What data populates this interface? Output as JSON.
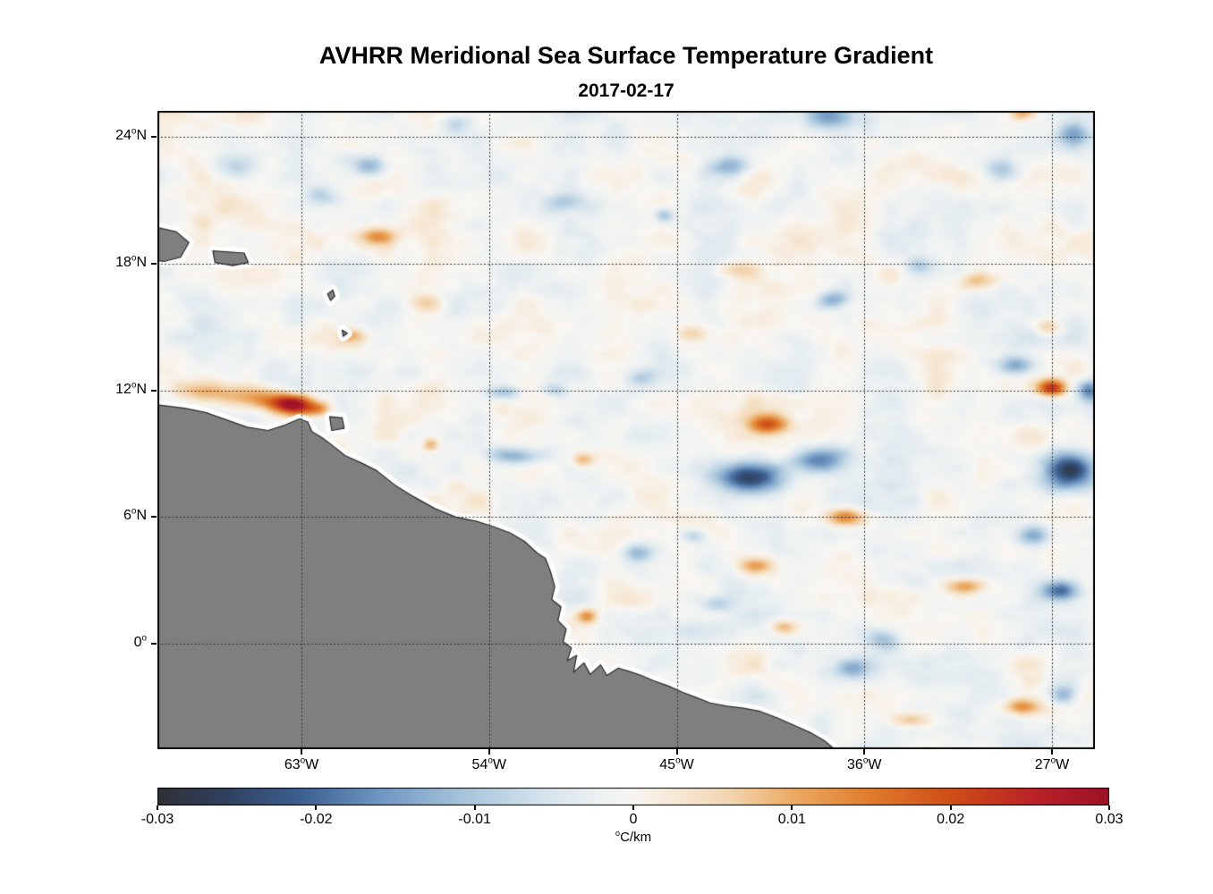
{
  "figure": {
    "title": "AVHRR Meridional Sea Surface Temperature Gradient",
    "subtitle": "2017-02-17",
    "background_color": "#ffffff"
  },
  "chart_data": {
    "type": "heatmap",
    "title": "AVHRR Meridional Sea Surface Temperature Gradient",
    "date": "2017-02-17",
    "units": "°C/km",
    "lon_range": [
      -69.91,
      -24.94
    ],
    "lat_range": [
      -4.99,
      25.23
    ],
    "x_ticks": {
      "values": [
        -63,
        -54,
        -45,
        -36,
        -27
      ],
      "labels": [
        "63°W",
        "54°W",
        "45°W",
        "36°W",
        "27°W"
      ]
    },
    "y_ticks": {
      "values": [
        24,
        18,
        12,
        6,
        0
      ],
      "labels": [
        "24°N",
        "18°N",
        "12°N",
        "6°N",
        "0°"
      ]
    },
    "grid": {
      "show": true,
      "style": "dotted",
      "color": "#2f2f2f"
    },
    "colorbar": {
      "orientation": "horizontal",
      "min": -0.03,
      "max": 0.03,
      "tick_values": [
        -0.03,
        -0.02,
        -0.01,
        0,
        0.01,
        0.02,
        0.03
      ],
      "tick_labels": [
        "-0.03",
        "-0.02",
        "-0.01",
        "0",
        "0.01",
        "0.02",
        "0.03"
      ],
      "label": "°C/km",
      "colormap": [
        {
          "v": -0.03,
          "c": "#313136"
        },
        {
          "v": -0.026,
          "c": "#2f3f5c"
        },
        {
          "v": -0.021,
          "c": "#3d6090"
        },
        {
          "v": -0.016,
          "c": "#6f96c2"
        },
        {
          "v": -0.011,
          "c": "#a4c2da"
        },
        {
          "v": -0.006,
          "c": "#d3e2ec"
        },
        {
          "v": -0.002,
          "c": "#eef2f2"
        },
        {
          "v": 0.0,
          "c": "#f8f6f2"
        },
        {
          "v": 0.002,
          "c": "#f7ecdd"
        },
        {
          "v": 0.006,
          "c": "#f3d6b2"
        },
        {
          "v": 0.01,
          "c": "#ecac64"
        },
        {
          "v": 0.015,
          "c": "#e07c2c"
        },
        {
          "v": 0.02,
          "c": "#cf4e17"
        },
        {
          "v": 0.025,
          "c": "#bc2428"
        },
        {
          "v": 0.03,
          "c": "#9d1126"
        }
      ]
    },
    "field": {
      "bias": -0.0008,
      "noise": {
        "seed": 20170217,
        "amplitude": 0.006,
        "scales_deg": [
          2.2,
          1.1,
          0.55
        ],
        "weights": [
          0.55,
          0.3,
          0.15
        ],
        "lat_aspect": 0.7
      },
      "features": [
        {
          "lon": -63.4,
          "lat": 11.3,
          "v": 0.032,
          "rx": 0.9,
          "ry": 0.45
        },
        {
          "lon": -65.0,
          "lat": 11.6,
          "v": 0.015,
          "rx": 1.5,
          "ry": 0.5
        },
        {
          "lon": -67.6,
          "lat": 11.9,
          "v": 0.012,
          "rx": 1.4,
          "ry": 0.55
        },
        {
          "lon": -62.2,
          "lat": 11.1,
          "v": 0.014,
          "rx": 0.6,
          "ry": 0.35
        },
        {
          "lon": -59.4,
          "lat": 19.3,
          "v": 0.013,
          "rx": 0.9,
          "ry": 0.4
        },
        {
          "lon": -59.7,
          "lat": 22.6,
          "v": -0.013,
          "rx": 0.9,
          "ry": 0.5
        },
        {
          "lon": -62.1,
          "lat": 21.2,
          "v": -0.009,
          "rx": 0.8,
          "ry": 0.5
        },
        {
          "lon": -66.2,
          "lat": 22.6,
          "v": -0.008,
          "rx": 1.0,
          "ry": 0.6
        },
        {
          "lon": -55.6,
          "lat": 24.6,
          "v": -0.009,
          "rx": 0.9,
          "ry": 0.5
        },
        {
          "lon": -42.4,
          "lat": 22.6,
          "v": -0.012,
          "rx": 1.0,
          "ry": 0.5
        },
        {
          "lon": -37.7,
          "lat": 24.9,
          "v": -0.013,
          "rx": 1.2,
          "ry": 0.6
        },
        {
          "lon": -29.4,
          "lat": 22.4,
          "v": -0.012,
          "rx": 0.9,
          "ry": 0.6
        },
        {
          "lon": -26.0,
          "lat": 24.1,
          "v": -0.01,
          "rx": 0.8,
          "ry": 0.5
        },
        {
          "lon": -28.4,
          "lat": 25.1,
          "v": 0.01,
          "rx": 0.6,
          "ry": 0.3
        },
        {
          "lon": -45.6,
          "lat": 20.3,
          "v": -0.011,
          "rx": 0.45,
          "ry": 0.35
        },
        {
          "lon": -50.3,
          "lat": 20.9,
          "v": -0.008,
          "rx": 0.9,
          "ry": 0.45
        },
        {
          "lon": -42.2,
          "lat": 17.7,
          "v": 0.009,
          "rx": 0.9,
          "ry": 0.4
        },
        {
          "lon": -37.5,
          "lat": 16.3,
          "v": -0.012,
          "rx": 0.7,
          "ry": 0.4
        },
        {
          "lon": -30.6,
          "lat": 17.2,
          "v": 0.01,
          "rx": 0.9,
          "ry": 0.4
        },
        {
          "lon": -33.4,
          "lat": 17.9,
          "v": -0.008,
          "rx": 0.7,
          "ry": 0.4
        },
        {
          "lon": -27.2,
          "lat": 15.0,
          "v": 0.009,
          "rx": 0.6,
          "ry": 0.4
        },
        {
          "lon": -28.7,
          "lat": 13.2,
          "v": -0.014,
          "rx": 0.9,
          "ry": 0.45
        },
        {
          "lon": -27.0,
          "lat": 12.1,
          "v": 0.024,
          "rx": 0.7,
          "ry": 0.4
        },
        {
          "lon": -25.2,
          "lat": 12.0,
          "v": -0.016,
          "rx": 0.5,
          "ry": 0.5
        },
        {
          "lon": -41.5,
          "lat": 7.9,
          "v": -0.026,
          "rx": 1.6,
          "ry": 0.75
        },
        {
          "lon": -38.2,
          "lat": 8.7,
          "v": -0.018,
          "rx": 1.3,
          "ry": 0.6
        },
        {
          "lon": -40.6,
          "lat": 10.4,
          "v": 0.019,
          "rx": 0.9,
          "ry": 0.45
        },
        {
          "lon": -36.9,
          "lat": 6.0,
          "v": 0.018,
          "rx": 0.9,
          "ry": 0.4
        },
        {
          "lon": -26.2,
          "lat": 8.2,
          "v": -0.023,
          "rx": 1.2,
          "ry": 0.9
        },
        {
          "lon": -27.9,
          "lat": 5.1,
          "v": -0.014,
          "rx": 0.8,
          "ry": 0.5
        },
        {
          "lon": -52.7,
          "lat": 8.9,
          "v": -0.014,
          "rx": 1.2,
          "ry": 0.4
        },
        {
          "lon": -56.8,
          "lat": 9.4,
          "v": 0.012,
          "rx": 0.4,
          "ry": 0.3
        },
        {
          "lon": -49.5,
          "lat": 8.7,
          "v": 0.011,
          "rx": 0.5,
          "ry": 0.3
        },
        {
          "lon": -53.3,
          "lat": 11.9,
          "v": -0.012,
          "rx": 0.8,
          "ry": 0.35
        },
        {
          "lon": -50.8,
          "lat": 12.0,
          "v": -0.008,
          "rx": 0.6,
          "ry": 0.3
        },
        {
          "lon": -46.7,
          "lat": 12.6,
          "v": -0.007,
          "rx": 0.7,
          "ry": 0.4
        },
        {
          "lon": -49.3,
          "lat": 1.3,
          "v": 0.016,
          "rx": 0.5,
          "ry": 0.35
        },
        {
          "lon": -46.9,
          "lat": 4.3,
          "v": -0.01,
          "rx": 0.7,
          "ry": 0.4
        },
        {
          "lon": -44.1,
          "lat": 5.1,
          "v": -0.008,
          "rx": 0.6,
          "ry": 0.35
        },
        {
          "lon": -36.6,
          "lat": -1.2,
          "v": -0.012,
          "rx": 0.9,
          "ry": 0.5
        },
        {
          "lon": -31.2,
          "lat": 2.7,
          "v": 0.012,
          "rx": 0.9,
          "ry": 0.35
        },
        {
          "lon": -26.6,
          "lat": 2.5,
          "v": -0.02,
          "rx": 1.0,
          "ry": 0.5
        },
        {
          "lon": -28.4,
          "lat": -3.0,
          "v": 0.014,
          "rx": 0.9,
          "ry": 0.4
        },
        {
          "lon": -26.4,
          "lat": -2.4,
          "v": -0.014,
          "rx": 0.7,
          "ry": 0.5
        },
        {
          "lon": -33.8,
          "lat": -3.6,
          "v": 0.01,
          "rx": 0.9,
          "ry": 0.35
        },
        {
          "lon": -35.1,
          "lat": 0.2,
          "v": -0.009,
          "rx": 0.8,
          "ry": 0.5
        },
        {
          "lon": -41.2,
          "lat": 3.7,
          "v": 0.009,
          "rx": 0.8,
          "ry": 0.35
        },
        {
          "lon": -43.2,
          "lat": 1.9,
          "v": -0.008,
          "rx": 0.7,
          "ry": 0.4
        },
        {
          "lon": -39.9,
          "lat": 0.8,
          "v": 0.01,
          "rx": 0.6,
          "ry": 0.3
        },
        {
          "lon": -44.2,
          "lat": 14.7,
          "v": 0.008,
          "rx": 0.8,
          "ry": 0.4
        },
        {
          "lon": -57.2,
          "lat": 16.1,
          "v": 0.008,
          "rx": 0.9,
          "ry": 0.4
        },
        {
          "lon": -60.6,
          "lat": 14.6,
          "v": 0.009,
          "rx": 0.6,
          "ry": 0.35
        }
      ]
    },
    "land": {
      "fill": "#7f7f7f",
      "edge": "#2b2b2b",
      "coastal_gap": "#ffffff",
      "polygons": {
        "mainland": [
          [
            -71.0,
            11.35
          ],
          [
            -70.2,
            11.35
          ],
          [
            -68.6,
            11.15
          ],
          [
            -67.6,
            10.95
          ],
          [
            -66.6,
            10.6
          ],
          [
            -65.6,
            10.25
          ],
          [
            -64.6,
            10.1
          ],
          [
            -63.8,
            10.35
          ],
          [
            -63.1,
            10.65
          ],
          [
            -62.7,
            10.5
          ],
          [
            -62.5,
            10.05
          ],
          [
            -62.0,
            9.75
          ],
          [
            -61.4,
            9.3
          ],
          [
            -60.9,
            8.9
          ],
          [
            -60.1,
            8.55
          ],
          [
            -59.4,
            8.2
          ],
          [
            -58.5,
            7.5
          ],
          [
            -57.6,
            6.95
          ],
          [
            -56.6,
            6.4
          ],
          [
            -55.6,
            6.0
          ],
          [
            -54.6,
            5.8
          ],
          [
            -53.8,
            5.55
          ],
          [
            -53.0,
            5.25
          ],
          [
            -52.3,
            4.85
          ],
          [
            -51.7,
            4.3
          ],
          [
            -51.3,
            4.05
          ],
          [
            -51.05,
            3.4
          ],
          [
            -50.85,
            2.7
          ],
          [
            -51.0,
            2.1
          ],
          [
            -50.55,
            1.75
          ],
          [
            -50.7,
            1.1
          ],
          [
            -50.3,
            0.7
          ],
          [
            -50.45,
            0.1
          ],
          [
            -50.05,
            -0.2
          ],
          [
            -50.25,
            -0.8
          ],
          [
            -49.8,
            -0.55
          ],
          [
            -49.95,
            -1.35
          ],
          [
            -49.45,
            -0.9
          ],
          [
            -49.15,
            -1.45
          ],
          [
            -48.65,
            -1.0
          ],
          [
            -48.35,
            -1.5
          ],
          [
            -47.8,
            -1.15
          ],
          [
            -47.3,
            -1.3
          ],
          [
            -46.7,
            -1.5
          ],
          [
            -46.1,
            -1.75
          ],
          [
            -45.4,
            -2.0
          ],
          [
            -44.7,
            -2.3
          ],
          [
            -44.05,
            -2.55
          ],
          [
            -43.4,
            -2.8
          ],
          [
            -42.6,
            -2.95
          ],
          [
            -41.8,
            -3.05
          ],
          [
            -41.0,
            -3.2
          ],
          [
            -40.2,
            -3.5
          ],
          [
            -39.4,
            -3.85
          ],
          [
            -38.6,
            -4.2
          ],
          [
            -37.9,
            -4.6
          ],
          [
            -37.3,
            -5.1
          ],
          [
            -36.9,
            -5.7
          ],
          [
            -71.0,
            -5.7
          ]
        ],
        "hispaniola": [
          [
            -70.3,
            19.8
          ],
          [
            -69.0,
            19.5
          ],
          [
            -68.4,
            19.0
          ],
          [
            -68.8,
            18.3
          ],
          [
            -69.6,
            18.1
          ],
          [
            -70.3,
            18.2
          ]
        ],
        "puerto_rico": [
          [
            -67.25,
            18.6
          ],
          [
            -65.75,
            18.5
          ],
          [
            -65.55,
            18.05
          ],
          [
            -66.3,
            17.9
          ],
          [
            -67.15,
            18.05
          ]
        ],
        "guadeloupe": [
          [
            -61.75,
            16.55
          ],
          [
            -61.5,
            16.75
          ],
          [
            -61.4,
            16.45
          ],
          [
            -61.6,
            16.25
          ]
        ],
        "martinique": [
          [
            -61.05,
            14.85
          ],
          [
            -60.8,
            14.7
          ],
          [
            -61.0,
            14.55
          ]
        ],
        "trinidad": [
          [
            -61.65,
            10.75
          ],
          [
            -61.05,
            10.7
          ],
          [
            -60.95,
            10.2
          ],
          [
            -61.55,
            10.1
          ]
        ]
      }
    }
  }
}
